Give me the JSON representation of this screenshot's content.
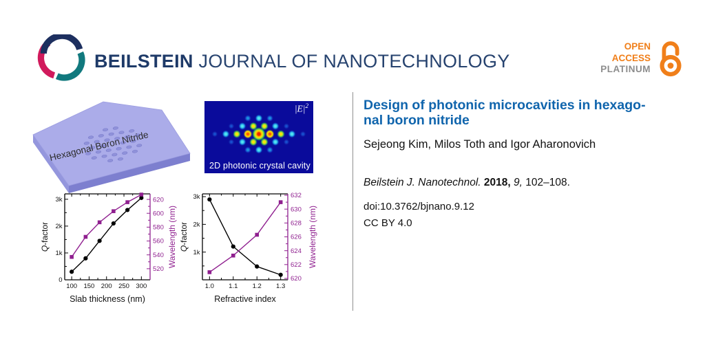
{
  "header": {
    "brand_bold": "BEILSTEIN",
    "brand_rest": "JOURNAL OF NANOTECHNOLOGY",
    "open_access": {
      "line1": "OPEN",
      "line2": "ACCESS",
      "line3": "PLATINUM"
    }
  },
  "figure": {
    "slab_label": "Hexagonal Boron Nitride",
    "field_plot": {
      "label_base": "|E|",
      "label_exp": "2",
      "caption": "2D photonic crystal cavity"
    }
  },
  "article": {
    "title_line1": "Design of photonic microcavities in hexago-",
    "title_line2": "nal boron nitride",
    "authors": "Sejeong Kim, Milos Toth and Igor Aharonovich",
    "citation": {
      "journal": "Beilstein J. Nanotechnol.",
      "year": "2018,",
      "volume": "9,",
      "pages": "102–108."
    },
    "doi": "doi:10.3762/bjnano.9.12",
    "license": "CC BY 4.0"
  },
  "colors": {
    "brand_navy": "#1e3a68",
    "title_blue": "#1065ad",
    "purple": "#8f1f8f",
    "orange": "#f07f1a",
    "platinum_gray": "#8c8c8c",
    "field_bg": "#0a0b9b",
    "logo_navy": "#1d2f5f",
    "logo_teal": "#11797e",
    "logo_pink": "#d11a5c"
  },
  "chart_data": [
    {
      "type": "line",
      "xlabel": "Slab thickness (nm)",
      "ylabel_left": "Q-factor",
      "ylabel_right": "Wavelength (nm)",
      "xlim": [
        80,
        325
      ],
      "xticks": {
        "values": [
          100,
          150,
          200,
          250,
          300
        ],
        "labels": [
          "100",
          "150",
          "200",
          "250",
          "300"
        ]
      },
      "ylim_left": [
        0,
        3200
      ],
      "yticks_left": {
        "values": [
          0,
          1000,
          2000,
          3000
        ],
        "labels": [
          "0",
          "1k",
          "2k",
          "3k"
        ]
      },
      "ylim_right": [
        504,
        628
      ],
      "yticks_right": {
        "values": [
          520,
          540,
          560,
          580,
          600,
          620
        ],
        "labels": [
          "520",
          "540",
          "560",
          "580",
          "600",
          "620"
        ]
      },
      "x": [
        100,
        140,
        180,
        220,
        260,
        300
      ],
      "series": [
        {
          "name": "Q-factor",
          "axis": "left",
          "marker": "circle",
          "color": "#000000",
          "values": [
            300,
            800,
            1450,
            2100,
            2600,
            3050
          ]
        },
        {
          "name": "Wavelength",
          "axis": "right",
          "marker": "square",
          "color": "#8f1f8f",
          "values": [
            537,
            566,
            587,
            603,
            616,
            627
          ]
        }
      ],
      "grid": false,
      "legend": "none"
    },
    {
      "type": "line",
      "xlabel": "Refractive index",
      "ylabel_left": "Q-factor",
      "ylabel_right": "Wavelength (nm)",
      "xlim": [
        0.97,
        1.33
      ],
      "xticks": {
        "values": [
          1.0,
          1.1,
          1.2,
          1.3
        ],
        "labels": [
          "1.0",
          "1.1",
          "1.2",
          "1.3"
        ]
      },
      "ylim_left": [
        0,
        3100
      ],
      "yticks_left": {
        "values": [
          1000,
          2000,
          3000
        ],
        "labels": [
          "1k",
          "2k",
          "3k"
        ]
      },
      "ylim_right": [
        619.8,
        632.2
      ],
      "yticks_right": {
        "values": [
          620,
          622,
          624,
          626,
          628,
          630,
          632
        ],
        "labels": [
          "620",
          "622",
          "624",
          "626",
          "628",
          "630",
          "632"
        ]
      },
      "x": [
        1.0,
        1.1,
        1.2,
        1.3
      ],
      "series": [
        {
          "name": "Q-factor",
          "axis": "left",
          "marker": "circle",
          "color": "#000000",
          "values": [
            2900,
            1200,
            480,
            180
          ]
        },
        {
          "name": "Wavelength",
          "axis": "right",
          "marker": "square",
          "color": "#8f1f8f",
          "values": [
            620.9,
            623.3,
            626.3,
            631.0
          ]
        }
      ],
      "grid": false,
      "legend": "none"
    }
  ]
}
